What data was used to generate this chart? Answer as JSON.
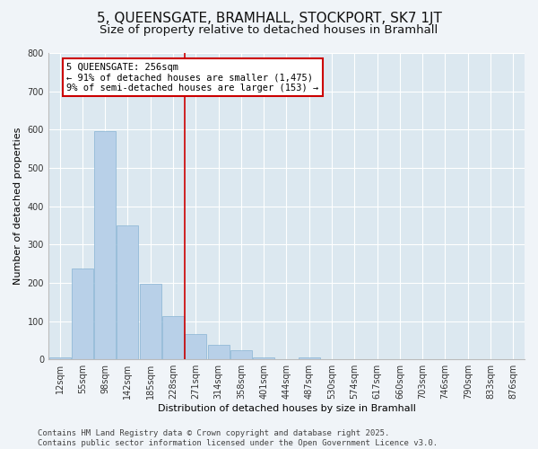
{
  "title1": "5, QUEENSGATE, BRAMHALL, STOCKPORT, SK7 1JT",
  "title2": "Size of property relative to detached houses in Bramhall",
  "xlabel": "Distribution of detached houses by size in Bramhall",
  "ylabel": "Number of detached properties",
  "bar_color": "#b8d0e8",
  "bar_edge_color": "#88b4d4",
  "background_color": "#dce8f0",
  "grid_color": "#ffffff",
  "annotation_line_color": "#cc0000",
  "annotation_box_color": "#cc0000",
  "fig_background": "#f0f4f8",
  "categories": [
    "12sqm",
    "55sqm",
    "98sqm",
    "142sqm",
    "185sqm",
    "228sqm",
    "271sqm",
    "314sqm",
    "358sqm",
    "401sqm",
    "444sqm",
    "487sqm",
    "530sqm",
    "574sqm",
    "617sqm",
    "660sqm",
    "703sqm",
    "746sqm",
    "790sqm",
    "833sqm",
    "876sqm"
  ],
  "bar_heights": [
    5,
    237,
    597,
    350,
    197,
    113,
    65,
    37,
    23,
    5,
    0,
    5,
    0,
    0,
    0,
    0,
    0,
    0,
    0,
    0,
    0
  ],
  "ylim": [
    0,
    800
  ],
  "yticks": [
    0,
    100,
    200,
    300,
    400,
    500,
    600,
    700,
    800
  ],
  "property_line_x": 5.5,
  "annotation_text": "5 QUEENSGATE: 256sqm\n← 91% of detached houses are smaller (1,475)\n9% of semi-detached houses are larger (153) →",
  "footer_text": "Contains HM Land Registry data © Crown copyright and database right 2025.\nContains public sector information licensed under the Open Government Licence v3.0.",
  "title_fontsize": 11,
  "subtitle_fontsize": 9.5,
  "axis_label_fontsize": 8,
  "tick_fontsize": 7,
  "annotation_fontsize": 7.5,
  "footer_fontsize": 6.5
}
